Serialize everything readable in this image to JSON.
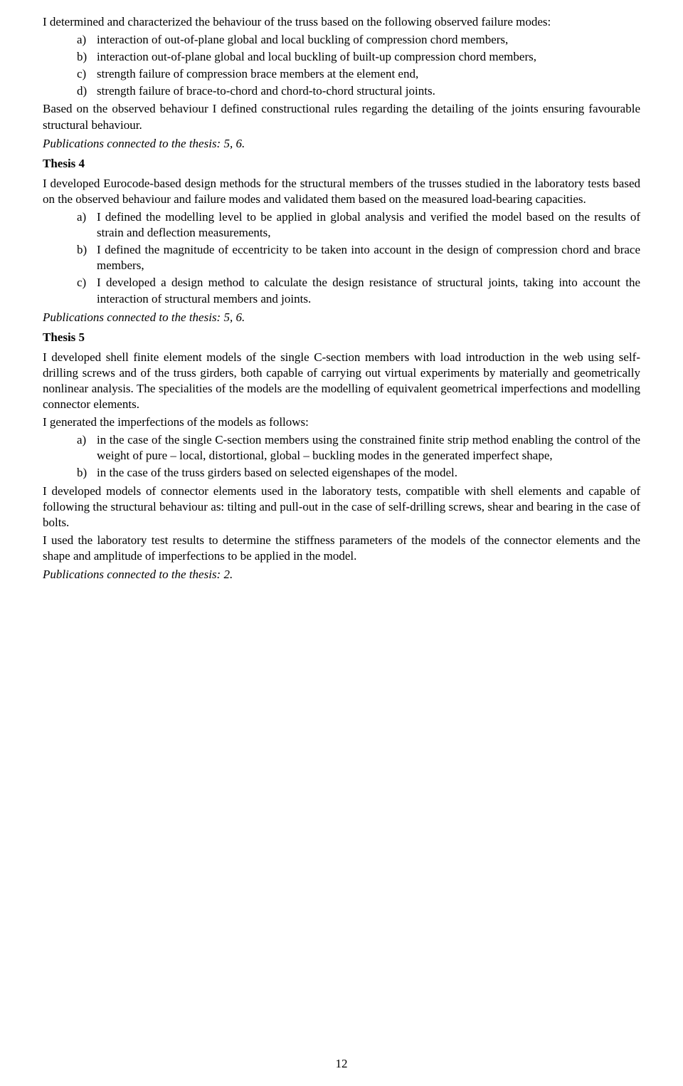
{
  "intro": {
    "p1": "I determined and characterized the behaviour of the truss based on the following observed failure modes:",
    "items": [
      {
        "marker": "a)",
        "text": "interaction of out-of-plane global and local buckling of compression chord members,"
      },
      {
        "marker": "b)",
        "text": "interaction out-of-plane global and local buckling of built-up compression chord members,"
      },
      {
        "marker": "c)",
        "text": "strength failure of compression brace members at the element end,"
      },
      {
        "marker": "d)",
        "text": "strength failure of brace-to-chord and chord-to-chord structural joints."
      }
    ],
    "p2": "Based on the observed behaviour I defined constructional rules regarding the detailing of the joints ensuring favourable structural behaviour.",
    "pubs": "Publications connected to the thesis: 5, 6."
  },
  "thesis4": {
    "heading": "Thesis 4",
    "p1": "I developed Eurocode-based design methods for the structural members of the trusses studied in the laboratory tests based on the observed behaviour and failure modes and validated them based on the measured load-bearing capacities.",
    "items": [
      {
        "marker": "a)",
        "text": "I defined the modelling level to be applied in global analysis and verified the model based on the results of strain and deflection measurements,"
      },
      {
        "marker": "b)",
        "text": "I defined the magnitude of eccentricity to be taken into account in the design of compression chord and brace members,"
      },
      {
        "marker": "c)",
        "text": "I developed a design method to calculate the design resistance of structural joints, taking into account the interaction of structural members and joints."
      }
    ],
    "pubs": "Publications connected to the thesis: 5, 6."
  },
  "thesis5": {
    "heading": "Thesis 5",
    "p1": "I developed shell finite element models of the single C-section members with load introduction in the web using self-drilling screws and of the truss girders, both capable of carrying out virtual experiments by materially and geometrically nonlinear analysis. The specialities of the models are the modelling of equivalent geometrical imperfections and modelling connector elements.",
    "p2": "I generated the imperfections of the models as follows:",
    "items": [
      {
        "marker": "a)",
        "text": "in the case of the single C-section members using the constrained finite strip method enabling the control of the weight of pure – local, distortional, global – buckling modes in the generated imperfect shape,"
      },
      {
        "marker": "b)",
        "text": "in the case of the truss girders based on selected eigenshapes of the model."
      }
    ],
    "p3": "I developed models of connector elements used in the laboratory tests, compatible with shell elements and capable of following the structural behaviour as: tilting and pull-out in the case of self-drilling screws, shear and bearing in the case of bolts.",
    "p4": "I used the laboratory test results to determine the stiffness parameters of the models of the connector elements and the shape and amplitude of imperfections to be applied in the model.",
    "pubs": "Publications connected to the thesis: 2."
  },
  "pageNumber": "12"
}
